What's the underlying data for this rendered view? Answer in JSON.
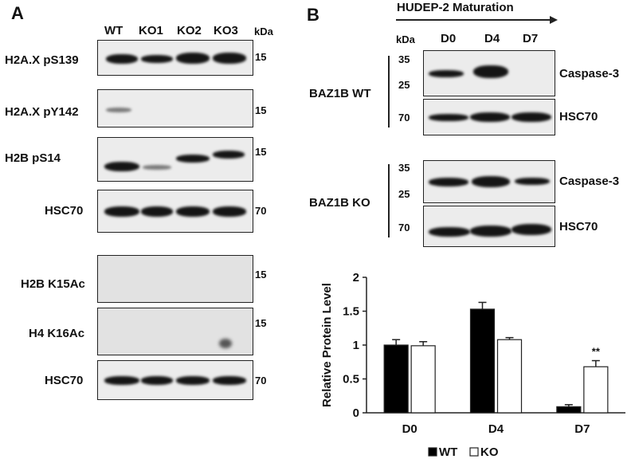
{
  "panel_a": {
    "letter": "A",
    "lanes": [
      "WT",
      "KO1",
      "KO2",
      "KO3"
    ],
    "kda_label": "kDa",
    "blots": [
      {
        "label": "H2A.X pS139",
        "mw": "15"
      },
      {
        "label": "H2A.X pY142",
        "mw": "15"
      },
      {
        "label": "H2B pS14",
        "mw": "15"
      },
      {
        "label": "HSC70",
        "mw": "70"
      },
      {
        "label": "H2B K15Ac",
        "mw": "15"
      },
      {
        "label": "H4 K16Ac",
        "mw": "15"
      },
      {
        "label": "HSC70",
        "mw": "70"
      }
    ]
  },
  "panel_b": {
    "letter": "B",
    "arrow_title": "HUDEP-2 Maturation",
    "kda_label": "kDa",
    "lanes": [
      "D0",
      "D4",
      "D7"
    ],
    "groups": [
      {
        "label": "BAZ1B WT",
        "blots": [
          {
            "label": "Caspase-3",
            "markers": [
              "35",
              "25"
            ]
          },
          {
            "label": "HSC70",
            "markers": [
              "70"
            ]
          }
        ]
      },
      {
        "label": "BAZ1B KO",
        "blots": [
          {
            "label": "Caspase-3",
            "markers": [
              "35",
              "25"
            ]
          },
          {
            "label": "HSC70",
            "markers": [
              "70"
            ]
          }
        ]
      }
    ]
  },
  "colors": {
    "wt": "#000000",
    "ko": "#ffffff",
    "axis": "#222222"
  },
  "chart_data": {
    "type": "bar",
    "categories": [
      "D0",
      "D4",
      "D7"
    ],
    "series": [
      {
        "name": "WT",
        "values": [
          1.0,
          1.53,
          0.09
        ],
        "errors": [
          0.08,
          0.1,
          0.03
        ]
      },
      {
        "name": "KO",
        "values": [
          0.99,
          1.08,
          0.68
        ],
        "errors": [
          0.06,
          0.03,
          0.09
        ]
      }
    ],
    "ylabel": "Relative Protein Level",
    "xlabel": "",
    "ylim": [
      0,
      2
    ],
    "yticks": [
      "0",
      "0.5",
      "1",
      "1.5",
      "2"
    ],
    "annotation": "**",
    "legend_position": "bottom",
    "grid": false
  }
}
